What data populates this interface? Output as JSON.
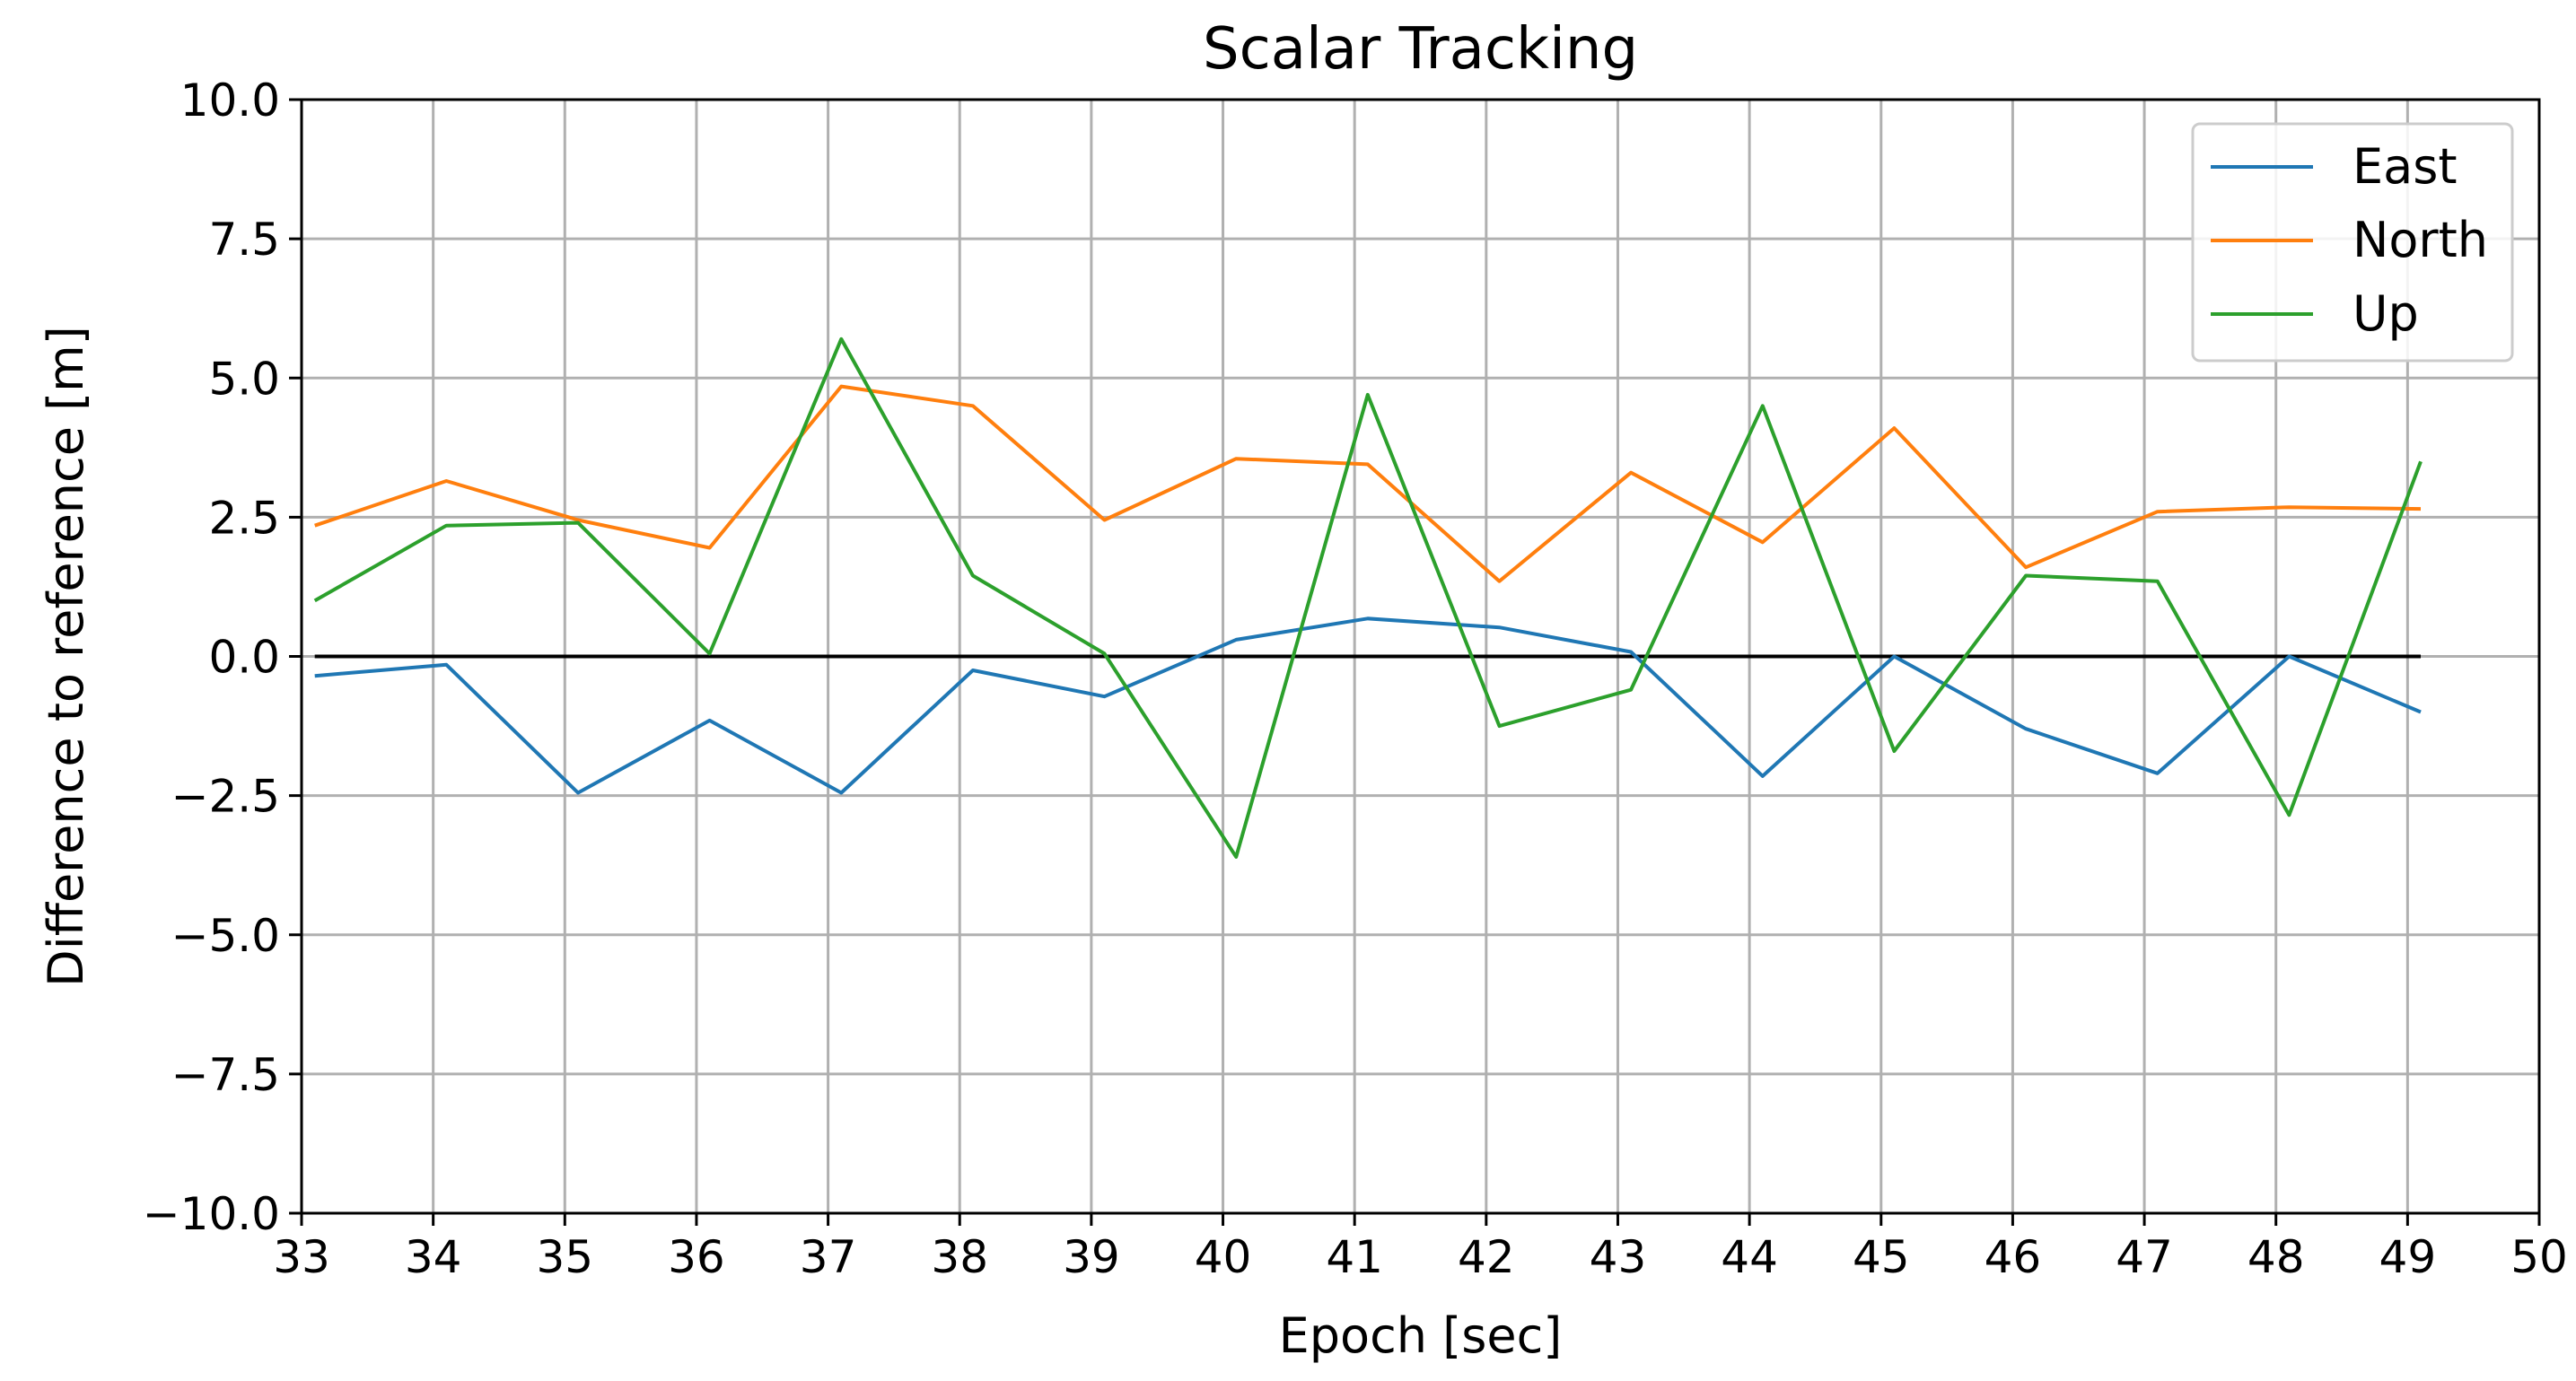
{
  "chart_data": {
    "type": "line",
    "title": "Scalar Tracking",
    "xlabel": "Epoch [sec]",
    "ylabel": "Difference to reference [m]",
    "xlim": [
      33,
      50
    ],
    "ylim": [
      -10,
      10
    ],
    "x_ticks": [
      33,
      34,
      35,
      36,
      37,
      38,
      39,
      40,
      41,
      42,
      43,
      44,
      45,
      46,
      47,
      48,
      49,
      50
    ],
    "x_tick_labels": [
      "33",
      "34",
      "35",
      "36",
      "37",
      "38",
      "39",
      "40",
      "41",
      "42",
      "43",
      "44",
      "45",
      "46",
      "47",
      "48",
      "49",
      "50"
    ],
    "y_ticks": [
      -10,
      -7.5,
      -5,
      -2.5,
      0,
      2.5,
      5,
      7.5,
      10
    ],
    "y_tick_labels": [
      "−10.0",
      "−7.5",
      "−5.0",
      "−2.5",
      "0.0",
      "2.5",
      "5.0",
      "7.5",
      "10.0"
    ],
    "grid": true,
    "legend_position": "top-right",
    "reference_line": {
      "y": 0,
      "x_range": [
        33.1,
        49.1
      ],
      "color": "#000000"
    },
    "x": [
      33.1,
      34.1,
      35.1,
      36.1,
      37.1,
      38.1,
      39.1,
      40.1,
      41.1,
      42.1,
      43.1,
      44.1,
      45.1,
      46.1,
      47.1,
      48.1,
      49.1
    ],
    "series": [
      {
        "name": "East",
        "color": "#1f77b4",
        "values": [
          -0.35,
          -0.15,
          -2.45,
          -1.15,
          -2.45,
          -0.25,
          -0.72,
          0.3,
          0.68,
          0.52,
          0.08,
          -2.15,
          0.0,
          -1.3,
          -2.1,
          0.0,
          -1.0
        ]
      },
      {
        "name": "North",
        "color": "#ff7f0e",
        "values": [
          2.35,
          3.15,
          2.45,
          1.95,
          4.85,
          4.5,
          2.45,
          3.55,
          3.45,
          1.35,
          3.3,
          2.05,
          4.1,
          1.6,
          2.6,
          2.68,
          2.65
        ]
      },
      {
        "name": "Up",
        "color": "#2ca02c",
        "values": [
          1.0,
          2.35,
          2.4,
          0.05,
          5.7,
          1.45,
          0.05,
          -3.6,
          4.7,
          -1.25,
          -0.6,
          4.5,
          -1.7,
          1.45,
          1.35,
          -2.85,
          3.5
        ]
      }
    ]
  }
}
